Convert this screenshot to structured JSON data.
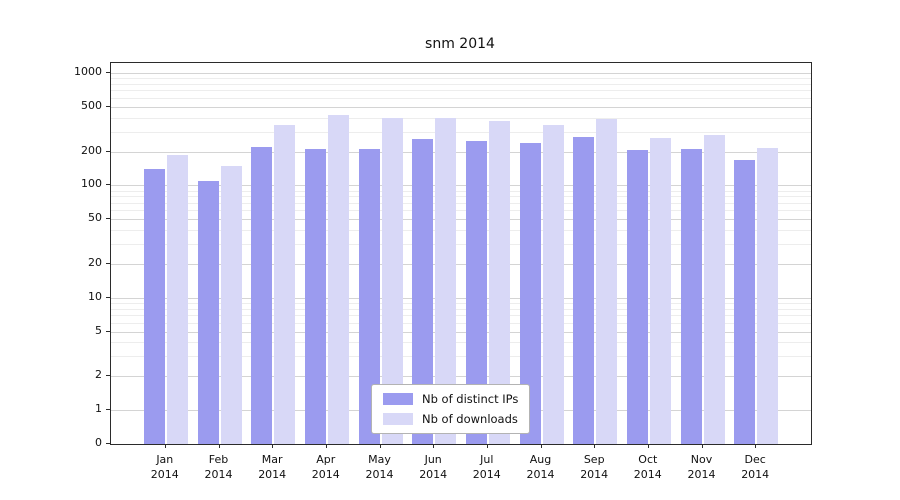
{
  "chart_data": {
    "type": "bar",
    "title": "snm 2014",
    "categories": [
      "Jan 2014",
      "Feb 2014",
      "Mar 2014",
      "Apr 2014",
      "May 2014",
      "Jun 2014",
      "Jul 2014",
      "Aug 2014",
      "Sep 2014",
      "Oct 2014",
      "Nov 2014",
      "Dec 2014"
    ],
    "series": [
      {
        "name": "Nb of distinct IPs",
        "color": "#9b9bef",
        "values": [
          140,
          110,
          220,
          210,
          210,
          260,
          250,
          240,
          270,
          205,
          210,
          170
        ]
      },
      {
        "name": "Nb of downloads",
        "color": "#d8d8f7",
        "values": [
          185,
          150,
          345,
          420,
          400,
          395,
          375,
          345,
          390,
          265,
          280,
          215
        ]
      }
    ],
    "yticks": [
      0,
      1,
      2,
      5,
      10,
      20,
      50,
      100,
      200,
      500,
      1000
    ],
    "yscale": "symlog",
    "ylim": [
      0,
      1000
    ],
    "grid": true,
    "legend_position": "lower center",
    "colors": {
      "axis": "#2b2b2b",
      "grid_major": "#d4d4d4",
      "grid_minor": "#ededed",
      "background": "#ffffff"
    }
  }
}
